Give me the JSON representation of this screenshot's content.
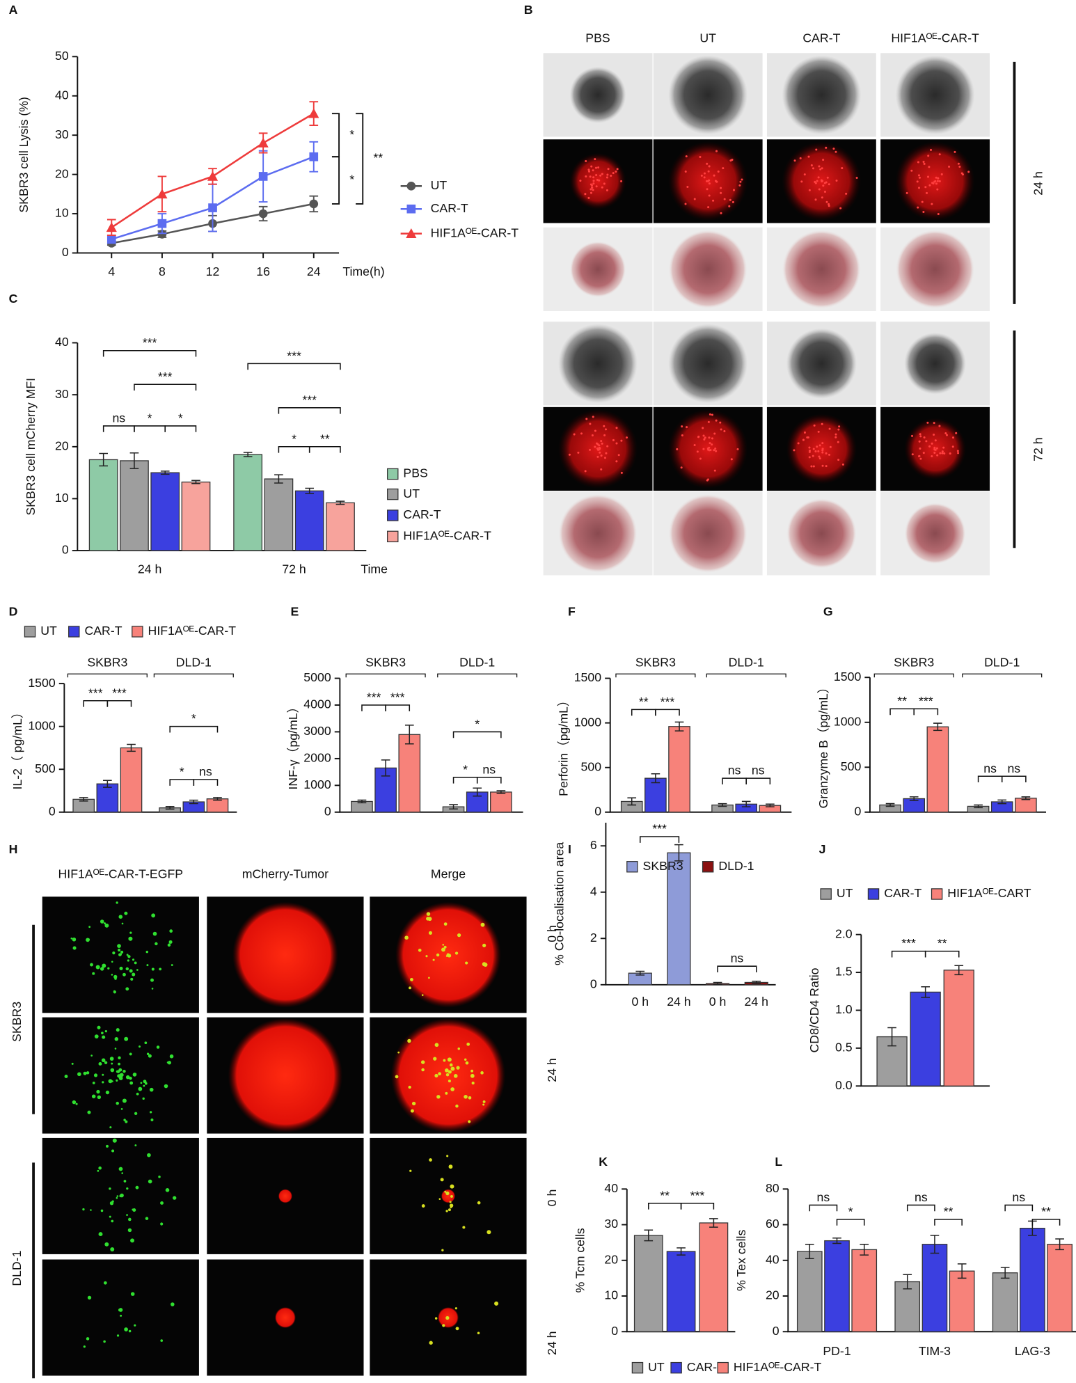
{
  "chart_data": [
    {
      "type": "line",
      "panel": "A",
      "ylabel": "SKBR3 cell Lysis (%)",
      "xlabel": "Time(h)",
      "categories": [
        "4",
        "8",
        "12",
        "16",
        "24"
      ],
      "ylim": [
        0,
        50
      ],
      "yticks": [
        0,
        10,
        20,
        30,
        40,
        50
      ],
      "series": [
        {
          "name": "UT",
          "color": "#555555",
          "marker": "circle",
          "values": [
            2.5,
            4.8,
            7.5,
            10,
            12.5
          ],
          "errors": [
            0.5,
            0.8,
            2,
            1.8,
            2
          ]
        },
        {
          "name": "CAR-T",
          "color": "#5c6cf0",
          "marker": "square",
          "values": [
            3.5,
            7.5,
            11.5,
            19.5,
            24.5
          ],
          "errors": [
            1,
            2.5,
            6,
            6.5,
            3.8
          ]
        },
        {
          "name": "HIF1Aᴼᴱ-CAR-T",
          "color": "#ee3b3b",
          "marker": "triangle",
          "values": [
            6.5,
            15,
            19.5,
            28,
            35.5
          ],
          "errors": [
            2,
            4.5,
            2,
            2.5,
            3
          ]
        }
      ],
      "annotations": [
        "*",
        "*",
        "**"
      ]
    },
    {
      "type": "bar",
      "panel": "C",
      "ylabel": "SKBR3 cell mCherry MFI",
      "xlabel": "Time",
      "categories": [
        "24 h",
        "72 h"
      ],
      "ylim": [
        0,
        40
      ],
      "yticks": [
        0,
        10,
        20,
        30,
        40
      ],
      "series": [
        {
          "name": "PBS",
          "color": "#8ecaa6",
          "values": [
            17.5,
            18.5
          ],
          "errors": [
            1.2,
            0.4
          ]
        },
        {
          "name": "UT",
          "color": "#9e9e9e",
          "values": [
            17.3,
            13.8
          ],
          "errors": [
            1.5,
            0.8
          ]
        },
        {
          "name": "CAR-T",
          "color": "#3b3fe0",
          "values": [
            15,
            11.5
          ],
          "errors": [
            0.3,
            0.5
          ]
        },
        {
          "name": "HIF1Aᴼᴱ-CAR-T",
          "color": "#f7a39c",
          "values": [
            13.2,
            9.2
          ],
          "errors": [
            0.3,
            0.3
          ]
        }
      ],
      "annotations": [
        "***",
        "***",
        "ns",
        "*",
        "*",
        "***",
        "***",
        "*",
        "**"
      ]
    },
    {
      "type": "bar",
      "panel": "D",
      "ylabel": "IL-2（ pg/mL）",
      "categories": [
        "SKBR3",
        "DLD-1"
      ],
      "ylim": [
        0,
        1500
      ],
      "yticks": [
        0,
        500,
        1000,
        1500
      ],
      "series": [
        {
          "name": "UT",
          "color": "#9e9e9e",
          "values": [
            150,
            50
          ],
          "errors": [
            20,
            15
          ]
        },
        {
          "name": "CAR-T",
          "color": "#3b3fe0",
          "values": [
            330,
            120
          ],
          "errors": [
            40,
            20
          ]
        },
        {
          "name": "HIF1Aᴼᴱ-CAR-T",
          "color": "#f7827a",
          "values": [
            750,
            155
          ],
          "errors": [
            40,
            15
          ]
        }
      ],
      "annotations": [
        "***",
        "***",
        "*",
        "*",
        "ns"
      ]
    },
    {
      "type": "bar",
      "panel": "E",
      "ylabel": "INF-γ（pg/mL）",
      "categories": [
        "SKBR3",
        "DLD-1"
      ],
      "ylim": [
        0,
        5000
      ],
      "yticks": [
        0,
        1000,
        2000,
        3000,
        4000,
        5000
      ],
      "series": [
        {
          "color": "#9e9e9e",
          "values": [
            400,
            200
          ],
          "errors": [
            50,
            80
          ]
        },
        {
          "color": "#3b3fe0",
          "values": [
            1650,
            750
          ],
          "errors": [
            300,
            150
          ]
        },
        {
          "color": "#f7827a",
          "values": [
            2900,
            750
          ],
          "errors": [
            350,
            50
          ]
        }
      ],
      "annotations": [
        "***",
        "***",
        "*",
        "*",
        "ns"
      ]
    },
    {
      "type": "bar",
      "panel": "F",
      "ylabel": "Perforin（pg/mL）",
      "categories": [
        "SKBR3",
        "DLD-1"
      ],
      "ylim": [
        0,
        1500
      ],
      "yticks": [
        0,
        500,
        1000,
        1500
      ],
      "series": [
        {
          "color": "#9e9e9e",
          "values": [
            120,
            80
          ],
          "errors": [
            40,
            15
          ]
        },
        {
          "color": "#3b3fe0",
          "values": [
            380,
            90
          ],
          "errors": [
            50,
            30
          ]
        },
        {
          "color": "#f7827a",
          "values": [
            960,
            75
          ],
          "errors": [
            50,
            15
          ]
        }
      ],
      "annotations": [
        "**",
        "***",
        "ns",
        "ns"
      ]
    },
    {
      "type": "bar",
      "panel": "G",
      "ylabel": "Granzyme B（pg/mL）",
      "categories": [
        "SKBR3",
        "DLD-1"
      ],
      "ylim": [
        0,
        1500
      ],
      "yticks": [
        0,
        500,
        1000,
        1500
      ],
      "series": [
        {
          "color": "#9e9e9e",
          "values": [
            80,
            65
          ],
          "errors": [
            15,
            15
          ]
        },
        {
          "color": "#3b3fe0",
          "values": [
            150,
            115
          ],
          "errors": [
            20,
            20
          ]
        },
        {
          "color": "#f7827a",
          "values": [
            950,
            155
          ],
          "errors": [
            40,
            15
          ]
        }
      ],
      "annotations": [
        "**",
        "***",
        "ns",
        "ns"
      ]
    },
    {
      "type": "bar",
      "panel": "I",
      "ylabel": "% Co-localisation area",
      "categories": [
        "0 h",
        "24 h",
        "0 h",
        "24 h"
      ],
      "ylim": [
        0,
        7
      ],
      "yticks": [
        0,
        2,
        4,
        6
      ],
      "series": [
        {
          "name": "SKBR3",
          "color": "#8e9bd8",
          "values": [
            0.5,
            5.7,
            null,
            null
          ],
          "errors": [
            0.08,
            0.35,
            null,
            null
          ]
        },
        {
          "name": "DLD-1",
          "color": "#8b1010",
          "values": [
            null,
            null,
            0.05,
            0.1
          ],
          "errors": [
            null,
            null,
            0.05,
            0.05
          ]
        }
      ],
      "annotations": [
        "***",
        "ns"
      ]
    },
    {
      "type": "bar",
      "panel": "J",
      "ylabel": "CD8/CD4 Ratio",
      "categories": [
        null
      ],
      "ylim": [
        0,
        2
      ],
      "yticks": [
        {
          "value": 0,
          "label": "0.0"
        },
        {
          "value": 0.5,
          "label": "0.5"
        },
        {
          "value": 1,
          "label": "1.0"
        },
        {
          "value": 1.5,
          "label": "1.5"
        },
        {
          "value": 2,
          "label": "2.0"
        }
      ],
      "series": [
        {
          "name": "UT",
          "color": "#9e9e9e",
          "values": [
            0.65
          ],
          "errors": [
            0.12
          ]
        },
        {
          "name": "CAR-T",
          "color": "#3b3fe0",
          "values": [
            1.24
          ],
          "errors": [
            0.07
          ]
        },
        {
          "name": "HIF1Aᴼᴱ-CART",
          "color": "#f7827a",
          "values": [
            1.53
          ],
          "errors": [
            0.06
          ]
        }
      ],
      "annotations": [
        "***",
        "**"
      ]
    },
    {
      "type": "bar",
      "panel": "K",
      "ylabel": "% Tcm cells",
      "categories": [
        null
      ],
      "ylim": [
        0,
        40
      ],
      "yticks": [
        0,
        10,
        20,
        30,
        40
      ],
      "series": [
        {
          "color": "#9e9e9e",
          "values": [
            27
          ],
          "errors": [
            1.5
          ]
        },
        {
          "color": "#3b3fe0",
          "values": [
            22.5
          ],
          "errors": [
            1
          ]
        },
        {
          "color": "#f7827a",
          "values": [
            30.5
          ],
          "errors": [
            1.2
          ]
        }
      ],
      "annotations": [
        "**",
        "***"
      ]
    },
    {
      "type": "bar",
      "panel": "L",
      "ylabel": "% Tex cells",
      "categories": [
        "PD-1",
        "TIM-3",
        "LAG-3"
      ],
      "ylim": [
        0,
        80
      ],
      "yticks": [
        0,
        20,
        40,
        60,
        80
      ],
      "series": [
        {
          "name": "UT",
          "color": "#9e9e9e",
          "values": [
            45,
            28,
            33
          ],
          "errors": [
            4,
            4,
            3
          ]
        },
        {
          "name": "CAR-T",
          "color": "#3b3fe0",
          "values": [
            51,
            49,
            58
          ],
          "errors": [
            1.5,
            5,
            4
          ]
        },
        {
          "name": "HIF1Aᴼᴱ-CAR-T",
          "color": "#f7827a",
          "values": [
            46,
            34,
            49
          ],
          "errors": [
            3,
            4,
            3
          ]
        }
      ],
      "annotations": [
        "ns",
        "*",
        "ns",
        "**",
        "ns",
        "**"
      ]
    }
  ],
  "images": [
    {
      "panel": "B",
      "columns": [
        "PBS",
        "UT",
        "CAR-T",
        "HIF1Aᴼᴱ-CAR-T"
      ],
      "groups": [
        "24 h",
        "72 h"
      ]
    },
    {
      "panel": "H",
      "columns": [
        "HIF1Aᴼᴱ-CAR-T-EGFP",
        "mCherry-Tumor",
        "Merge"
      ],
      "column_colors": [
        "#1a8a8a",
        "#e02020",
        "#f07020"
      ],
      "groups": [
        "SKBR3",
        "DLD-1"
      ],
      "rows": [
        "0 h",
        "24 h",
        "0 h",
        "24 h"
      ]
    }
  ]
}
